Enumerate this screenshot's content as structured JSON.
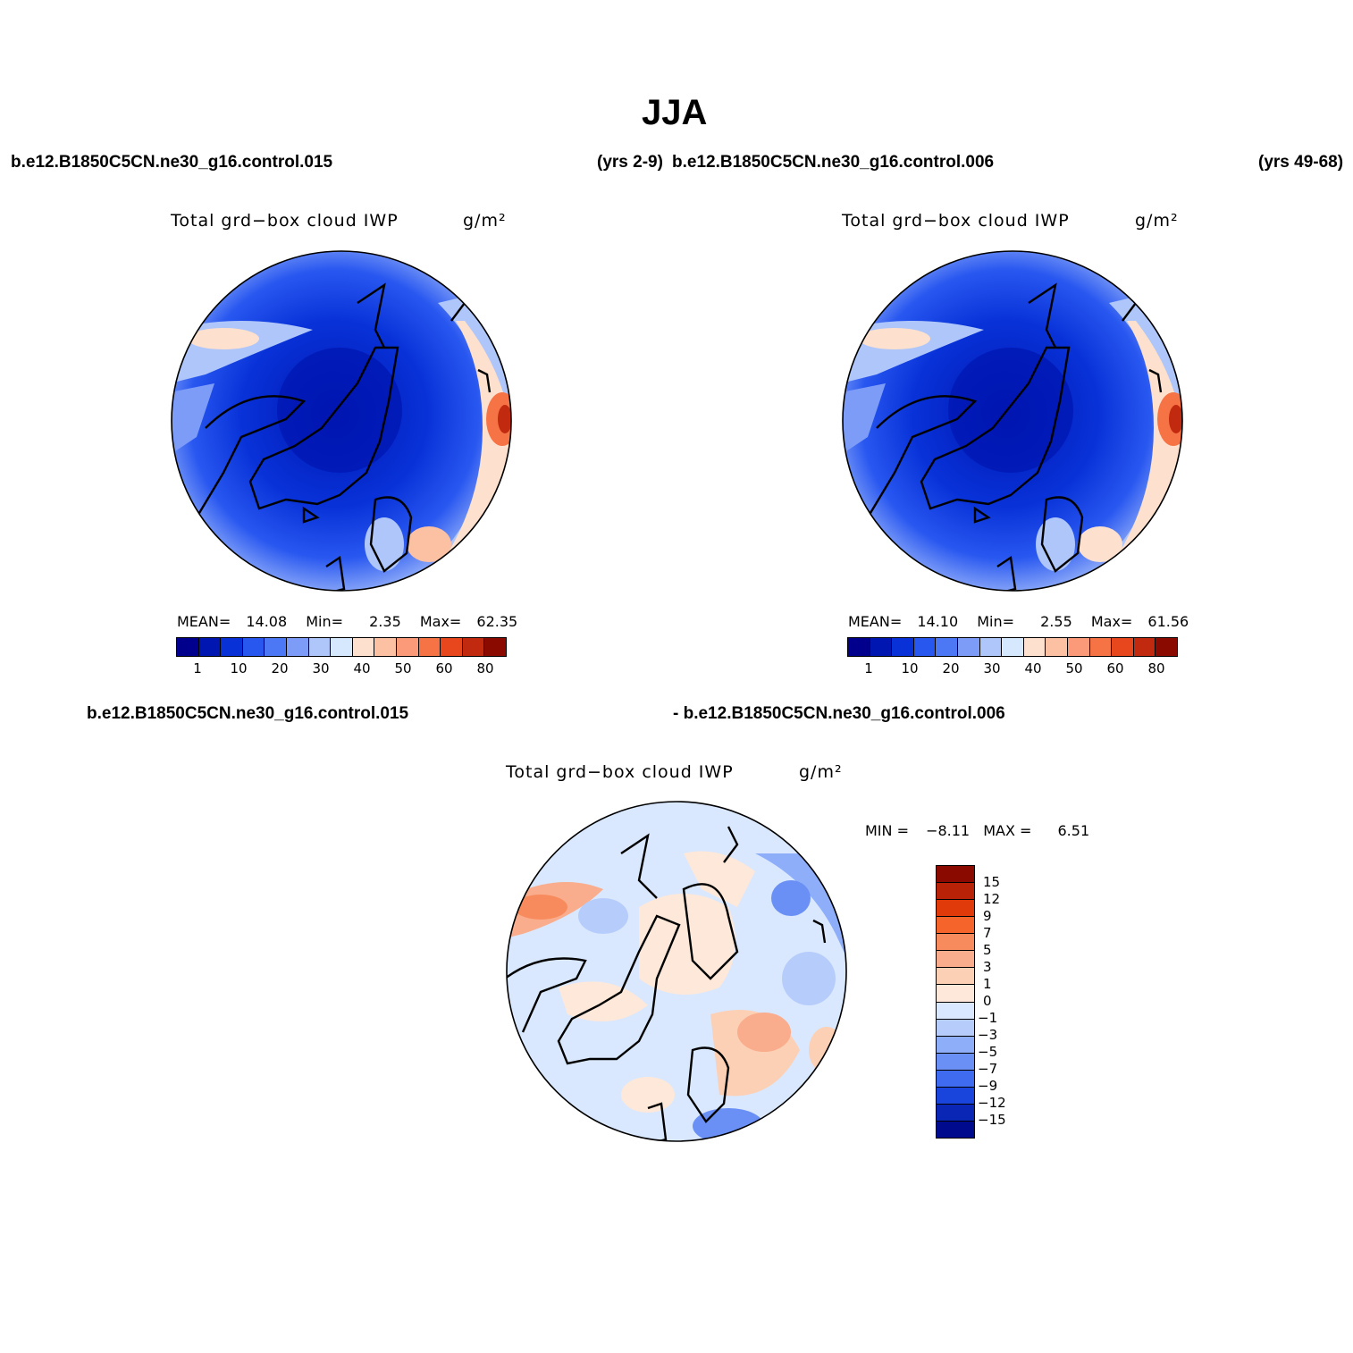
{
  "figure": {
    "season": "JJA",
    "case1_label": "b.e12.B1850C5CN.ne30_g16.control.015",
    "case1_years": "(yrs 2-9)",
    "case2_label": "b.e12.B1850C5CN.ne30_g16.control.006",
    "case2_years": "(yrs 49-68)",
    "diff_case1": "b.e12.B1850C5CN.ne30_g16.control.015",
    "diff_case2": "- b.e12.B1850C5CN.ne30_g16.control.006"
  },
  "panel1": {
    "variable": "Total grd−box cloud IWP",
    "units": "g/m²",
    "mean_label": "MEAN=",
    "mean": "14.08",
    "min_label": "Min=",
    "min": "2.35",
    "max_label": "Max=",
    "max": "62.35"
  },
  "panel2": {
    "variable": "Total grd−box cloud IWP",
    "units": "g/m²",
    "mean_label": "MEAN=",
    "mean": "14.10",
    "min_label": "Min=",
    "min": "2.55",
    "max_label": "Max=",
    "max": "61.56"
  },
  "panel3": {
    "variable": "Total grd−box cloud IWP",
    "units": "g/m²",
    "min_label": "MIN =",
    "min": "−8.11",
    "max_label": "MAX =",
    "max": "6.51"
  },
  "colorbar_abs": {
    "colors": [
      "#00008c",
      "#0016b0",
      "#0832d8",
      "#2857f0",
      "#4d78f5",
      "#7c9cf7",
      "#aec6fa",
      "#d6e8fe",
      "#fde0cd",
      "#fcc0a3",
      "#fa9a78",
      "#f67346",
      "#e8461c",
      "#c22a0f",
      "#8b0a00"
    ],
    "ticks": [
      "1",
      "10",
      "20",
      "30",
      "40",
      "50",
      "60",
      "80"
    ]
  },
  "colorbar_diff": {
    "colors": [
      "#8b0a00",
      "#b82308",
      "#e03a0a",
      "#f5642b",
      "#f88b5d",
      "#f9ad8c",
      "#fcd0b5",
      "#fde8da",
      "#d9e8fe",
      "#b6ccfb",
      "#8eaef9",
      "#6a90f6",
      "#3f6bf0",
      "#1a45dc",
      "#0a26b4",
      "#000a8c"
    ],
    "ticks": [
      "15",
      "12",
      "9",
      "7",
      "5",
      "3",
      "1",
      "0",
      "−1",
      "−3",
      "−5",
      "−7",
      "−9",
      "−12",
      "−15"
    ]
  }
}
